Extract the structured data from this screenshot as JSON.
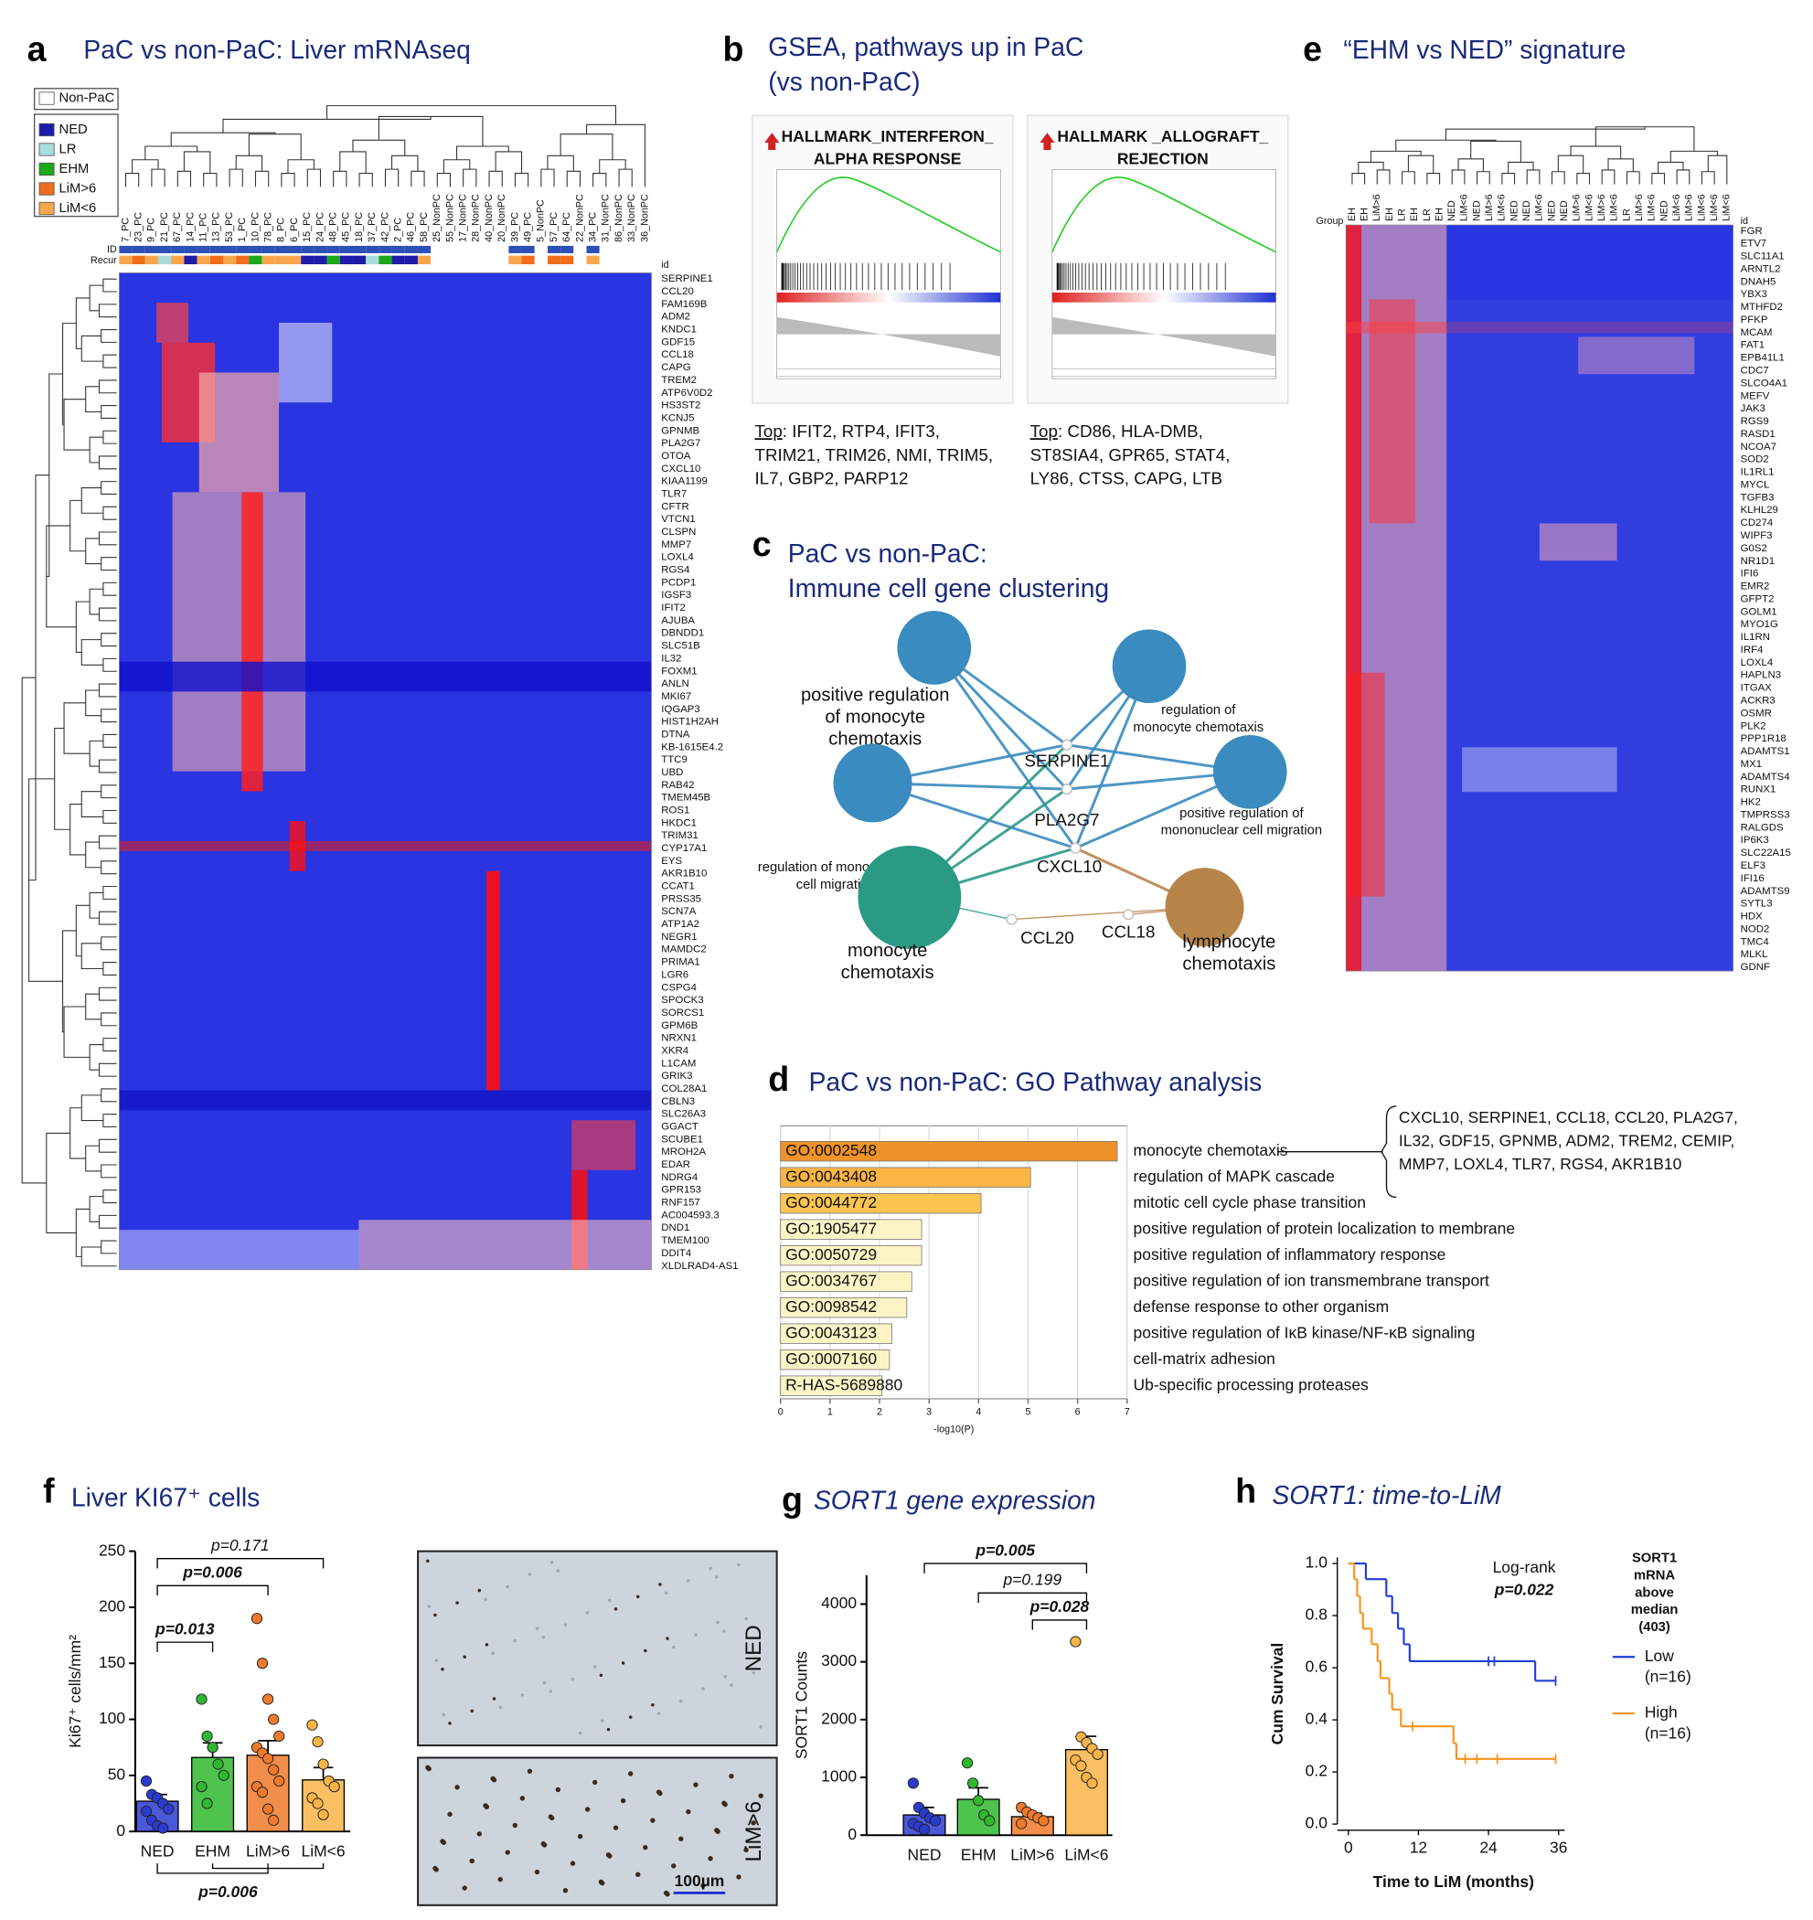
{
  "panel_a": {
    "label": "a",
    "title": "PaC vs non-PaC: Liver mRNAseq",
    "legend": [
      {
        "name": "Non-PaC",
        "color": "#ffffff"
      },
      {
        "name": "NED",
        "color": "#1c1ca8"
      },
      {
        "name": "LR",
        "color": "#a9dcdc"
      },
      {
        "name": "EHM",
        "color": "#1aa81a"
      },
      {
        "name": "LiM>6",
        "color": "#f06d1c"
      },
      {
        "name": "LiM<6",
        "color": "#f8a64c"
      }
    ],
    "row_labels": [
      "ID",
      "Recur",
      "id"
    ],
    "samples": [
      "7_PC",
      "23_PC",
      "9_PC",
      "21_PC",
      "67_PC",
      "14_PC",
      "11_PC",
      "13_PC",
      "53_PC",
      "1_PC",
      "10_PC",
      "78_PC",
      "8_PC",
      "6_PC",
      "15_PC",
      "24_PC",
      "48_PC",
      "45_PC",
      "18_PC",
      "37_PC",
      "42_PC",
      "2_PC",
      "46_PC",
      "58_PC",
      "25_NonPC",
      "55_NonPC",
      "17_NonPC",
      "28_NonPC",
      "40_NonPC",
      "20_NonPC",
      "39_PC",
      "49_PC",
      "5_NonPC",
      "57_PC",
      "64_PC",
      "22_NonPC",
      "34_PC",
      "31_NonPC",
      "86_NonPC",
      "33_NonPC",
      "36_NonPC"
    ],
    "recurrence": [
      "LiM<6",
      "LiM>6",
      "LiM<6",
      "LR",
      "LiM<6",
      "NED",
      "LiM<6",
      "LiM>6",
      "LiM<6",
      "LiM>6",
      "EHM",
      "LiM<6",
      "LiM<6",
      "LiM<6",
      "NED",
      "NED",
      "EHM",
      "NED",
      "NED",
      "LR",
      "EHM",
      "NED",
      "NED",
      "LiM<6",
      "Non-PaC",
      "Non-PaC",
      "Non-PaC",
      "Non-PaC",
      "Non-PaC",
      "Non-PaC",
      "LiM<6",
      "LiM>6",
      "Non-PaC",
      "LiM>6",
      "LiM>6",
      "Non-PaC",
      "LiM<6",
      "Non-PaC",
      "Non-PaC",
      "Non-PaC",
      "Non-PaC"
    ],
    "genes": [
      "SERPINE1",
      "CCL20",
      "FAM169B",
      "ADM2",
      "KNDC1",
      "GDF15",
      "CCL18",
      "CAPG",
      "TREM2",
      "ATP6V0D2",
      "HS3ST2",
      "KCNJ5",
      "GPNMB",
      "PLA2G7",
      "OTOA",
      "CXCL10",
      "KIAA1199",
      "TLR7",
      "CFTR",
      "VTCN1",
      "CLSPN",
      "MMP7",
      "LOXL4",
      "RGS4",
      "PCDP1",
      "IGSF3",
      "IFIT2",
      "AJUBA",
      "DBNDD1",
      "SLC51B",
      "IL32",
      "FOXM1",
      "ANLN",
      "MKI67",
      "IQGAP3",
      "HIST1H2AH",
      "DTNA",
      "KB-1615E4.2",
      "TTC9",
      "UBD",
      "RAB42",
      "TMEM45B",
      "ROS1",
      "HKDC1",
      "TRIM31",
      "CYP17A1",
      "EYS",
      "AKR1B10",
      "CCAT1",
      "PRSS35",
      "SCN7A",
      "ATP1A2",
      "NEGR1",
      "MAMDC2",
      "PRIMA1",
      "LGR6",
      "CSPG4",
      "SPOCK3",
      "SORCS1",
      "GPM6B",
      "NRXN1",
      "XKR4",
      "L1CAM",
      "GRIK3",
      "COL28A1",
      "CBLN3",
      "SLC26A3",
      "GGACT",
      "SCUBE1",
      "MROH2A",
      "EDAR",
      "NDRG4",
      "GPR153",
      "RNF157",
      "AC004593.3",
      "DND1",
      "TMEM100",
      "DDIT4",
      "XLDLRAD4-AS1"
    ]
  },
  "panel_b": {
    "label": "b",
    "title": [
      "GSEA, pathways up in PaC",
      "(vs non-PaC)"
    ],
    "cards": [
      {
        "title": [
          "HALLMARK_INTERFERON_",
          "ALPHA RESPONSE"
        ],
        "top_label": "Top",
        "top_genes": [
          ": IFIT2, RTP4, IFIT3,",
          "TRIM21, TRIM26, NMI, TRIM5,",
          "IL7, GBP2, PARP12"
        ]
      },
      {
        "title": [
          "HALLMARK _ALLOGRAFT_",
          "REJECTION"
        ],
        "top_label": "Top",
        "top_genes": [
          ": CD86, HLA-DMB,",
          "ST8SIA4, GPR65, STAT4,",
          "LY86, CTSS, CAPG, LTB"
        ]
      }
    ]
  },
  "panel_c": {
    "label": "c",
    "title": [
      "PaC vs non-PaC:",
      "Immune cell gene clustering"
    ],
    "terms": [
      {
        "label": [
          "positive regulation",
          "of monocyte",
          "chemotaxis"
        ],
        "color": "#3a8bbf",
        "label_color": "#2f86c0"
      },
      {
        "label": [
          "regulation of",
          "monocyte chemotaxis"
        ],
        "color": "#3a8bbf",
        "label_color": "#9a9a9a"
      },
      {
        "label": [
          "regulation of mononuclear",
          "cell migration"
        ],
        "color": "#3a8bbf",
        "label_color": "#9a9a9a"
      },
      {
        "label": [
          "positive regulation of",
          "mononuclear cell migration"
        ],
        "color": "#3a8bbf",
        "label_color": "#9a9a9a"
      },
      {
        "label": [
          "monocyte",
          "chemotaxis"
        ],
        "color": "#2b9a84",
        "label_color": "#2b9a84"
      },
      {
        "label": [
          "lymphocyte",
          "chemotaxis"
        ],
        "color": "#b7844a",
        "label_color": "#b7844a"
      }
    ],
    "genes": [
      "SERPINE1",
      "PLA2G7",
      "CXCL10",
      "CCL20",
      "CCL18"
    ],
    "gene_color": "#c8202a"
  },
  "panel_e": {
    "label": "e",
    "title": "“EHM vs NED” signature",
    "row_labels": [
      "Group",
      "id"
    ],
    "groups": [
      "EH",
      "EH",
      "LiM>6",
      "EH",
      "LR",
      "EH",
      "LR",
      "EH",
      "NED",
      "LiM<6",
      "NED",
      "LiM>6",
      "LiM<6",
      "NED",
      "NED",
      "LiM<6",
      "NED",
      "NED",
      "LiM>6",
      "LiM<6",
      "LiM>6",
      "LiM<6",
      "LR",
      "LiM>6",
      "LiM<6",
      "NED",
      "LiM<6",
      "LiM>6",
      "LiM<6",
      "LiM<6",
      "LiM<6"
    ],
    "genes": [
      "FGR",
      "ETV7",
      "SLC11A1",
      "ARNTL2",
      "DNAH5",
      "YBX3",
      "MTHFD2",
      "PFKP",
      "MCAM",
      "FAT1",
      "EPB41L1",
      "CDC7",
      "SLCO4A1",
      "MEFV",
      "JAK3",
      "RGS9",
      "RASD1",
      "NCOA7",
      "SOD2",
      "IL1RL1",
      "MYCL",
      "TGFB3",
      "KLHL29",
      "CD274",
      "WIPF3",
      "G0S2",
      "NR1D1",
      "IFI6",
      "EMR2",
      "GFPT2",
      "GOLM1",
      "MYO1G",
      "IL1RN",
      "IRF4",
      "LOXL4",
      "HAPLN3",
      "ITGAX",
      "ACKR3",
      "OSMR",
      "PLK2",
      "PPP1R18",
      "ADAMTS1",
      "MX1",
      "ADAMTS4",
      "RUNX1",
      "HK2",
      "TMPRSS3",
      "RALGDS",
      "IP6K3",
      "SLC22A15",
      "ELF3",
      "IFI16",
      "ADAMTS9",
      "SYTL3",
      "HDX",
      "NOD2",
      "TMC4",
      "MLKL",
      "GDNF"
    ]
  },
  "chart_data": [
    {
      "type": "hbar",
      "panel_label": "d",
      "title": "PaC vs non-PaC: GO Pathway analysis",
      "categories": [
        "GO:0002548",
        "GO:0043408",
        "GO:0044772",
        "GO:1905477",
        "GO:0050729",
        "GO:0034767",
        "GO:0098542",
        "GO:0043123",
        "GO:0007160",
        "R-HAS-5689880"
      ],
      "descriptions": [
        "monocyte chemotaxis",
        "regulation of MAPK cascade",
        "mitotic cell cycle phase transition",
        "positive regulation of protein localization to membrane",
        "positive regulation of inflammatory response",
        "positive regulation of ion transmembrane transport",
        "defense response to other organism",
        "positive regulation of IκB kinase/NF-κB signaling",
        "cell-matrix adhesion",
        "Ub-specific processing proteases"
      ],
      "values": [
        6.8,
        5.05,
        4.05,
        2.85,
        2.85,
        2.65,
        2.55,
        2.25,
        2.2,
        2.05
      ],
      "colors": [
        "#f0922a",
        "#fbb545",
        "#fcc550",
        "#fdf4c6",
        "#fdf4c6",
        "#fdf4c6",
        "#fdf4c6",
        "#fdf4c6",
        "#fdf4c6",
        "#fdf4c6"
      ],
      "xlim": [
        0,
        7
      ],
      "xticks": [
        0,
        1,
        2,
        3,
        4,
        5,
        6,
        7
      ],
      "xlabel": "-log10(P)",
      "grid": true,
      "annotation": [
        "CXCL10, SERPINE1, CCL18, CCL20, PLA2G7,",
        "IL32, GDF15, GPNMB, ADM2, TREM2, CEMIP,",
        "MMP7, LOXL4, TLR7, RGS4, AKR1B10"
      ]
    },
    {
      "type": "bar_dots",
      "panel_label": "f",
      "title": "Liver KI67⁺ cells",
      "ylabel": "Ki67⁺ cells/mm²",
      "categories": [
        "NED",
        "EHM",
        "LiM>6",
        "LiM<6"
      ],
      "colors": [
        "#2b3bd0",
        "#2fb82f",
        "#f07a2b",
        "#f8b446"
      ],
      "values": [
        27,
        66,
        68,
        46
      ],
      "errors": [
        6,
        13,
        13,
        11
      ],
      "points": [
        [
          45,
          33,
          30,
          25,
          20,
          18,
          10,
          5,
          3
        ],
        [
          118,
          85,
          75,
          60,
          50,
          40,
          25
        ],
        [
          190,
          150,
          118,
          100,
          85,
          75,
          70,
          65,
          55,
          45,
          40,
          35,
          20,
          10
        ],
        [
          95,
          80,
          60,
          45,
          40,
          30,
          25,
          15
        ]
      ],
      "ylim": [
        0,
        250
      ],
      "yticks": [
        0,
        50,
        100,
        150,
        200,
        250
      ],
      "annotations": [
        {
          "text": "p=0.171",
          "bold": false
        },
        {
          "text": "p=0.006",
          "bold": true
        },
        {
          "text": "p=0.013",
          "bold": true
        },
        {
          "text": "p=0.006",
          "bold": true
        }
      ],
      "image_labels": [
        "NED",
        "LiM>6"
      ],
      "scale_bar": "100µm"
    },
    {
      "type": "bar_dots",
      "panel_label": "g",
      "title": "SORT1 gene expression",
      "ylabel": "SORT1 Counts",
      "categories": [
        "NED",
        "EHM",
        "LiM>6",
        "LiM<6"
      ],
      "colors": [
        "#2b3bd0",
        "#2fb82f",
        "#f07a2b",
        "#f8b446"
      ],
      "values": [
        350,
        620,
        320,
        1480
      ],
      "errors": [
        130,
        200,
        60,
        230
      ],
      "points": [
        [
          900,
          480,
          380,
          300,
          250,
          200,
          150,
          100
        ],
        [
          1250,
          900,
          600,
          350,
          250
        ],
        [
          480,
          400,
          350,
          300,
          250,
          200
        ],
        [
          3350,
          1700,
          1600,
          1500,
          1400,
          1300,
          1200,
          1000,
          900
        ]
      ],
      "ylim": [
        0,
        4500
      ],
      "yticks": [
        0,
        1000,
        2000,
        3000,
        4000
      ],
      "annotations": [
        {
          "text": "p=0.005",
          "bold": true
        },
        {
          "text": "p=0.199",
          "bold": false
        },
        {
          "text": "p=0.028",
          "bold": true
        }
      ]
    },
    {
      "type": "survival",
      "panel_label": "h",
      "title": "SORT1: time-to-LiM",
      "xlabel": "Time to LiM (months)",
      "ylabel": "Cum Survival",
      "xlim": [
        0,
        36
      ],
      "xticks": [
        0,
        12,
        24,
        36
      ],
      "ylim": [
        0,
        1
      ],
      "yticks": [
        {
          "value": 0,
          "label": "0.0"
        },
        0.2,
        0.4,
        0.6,
        0.8,
        {
          "value": 1,
          "label": "1.0"
        }
      ],
      "legend_title": [
        "SORT1",
        "mRNA",
        "above",
        "median",
        "(403)"
      ],
      "annotations": [
        "Log-rank",
        "p=0.022"
      ],
      "series": [
        {
          "name": "Low",
          "n_label": "(n=16)",
          "color": "#1f3fd8",
          "x": [
            0,
            3,
            6.5,
            7.5,
            8.5,
            9.5,
            10.5,
            32
          ],
          "y": [
            1,
            0.94,
            0.875,
            0.81,
            0.75,
            0.69,
            0.625,
            0.55
          ],
          "censored": [
            24,
            25,
            35.5
          ]
        },
        {
          "name": "High",
          "n_label": "(n=16)",
          "color": "#f7941d",
          "x": [
            0,
            1,
            1.5,
            2,
            2.5,
            4,
            5,
            5.5,
            7,
            7.5,
            9,
            18,
            18.5
          ],
          "y": [
            1,
            0.94,
            0.875,
            0.81,
            0.75,
            0.69,
            0.625,
            0.56,
            0.5,
            0.44,
            0.375,
            0.31,
            0.25
          ],
          "censored": [
            11,
            20,
            22,
            25.5,
            35.5
          ]
        }
      ]
    }
  ]
}
